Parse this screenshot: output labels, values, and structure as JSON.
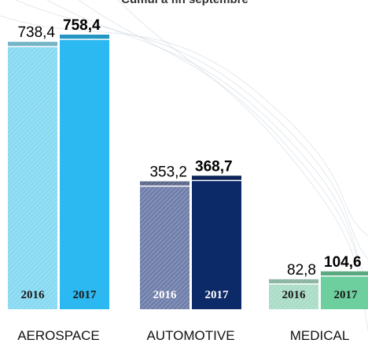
{
  "chart_data": {
    "type": "bar",
    "title": "Cumul à fin septembre",
    "categories": [
      "AEROSPACE",
      "AUTOMOTIVE",
      "MEDICAL"
    ],
    "series": [
      {
        "name": "2016",
        "colors": [
          "#86d9f2",
          "#6f7eaa",
          "#a9dcc6"
        ],
        "values": [
          738.4,
          353.2,
          82.8
        ],
        "value_labels": [
          "738,4",
          "353,2",
          "82,8"
        ]
      },
      {
        "name": "2017",
        "colors": [
          "#2cb8f0",
          "#0d2a68",
          "#6dcf9e"
        ],
        "values": [
          758.4,
          368.7,
          104.6
        ],
        "value_labels": [
          "758,4",
          "368,7",
          "104,6"
        ]
      }
    ]
  }
}
